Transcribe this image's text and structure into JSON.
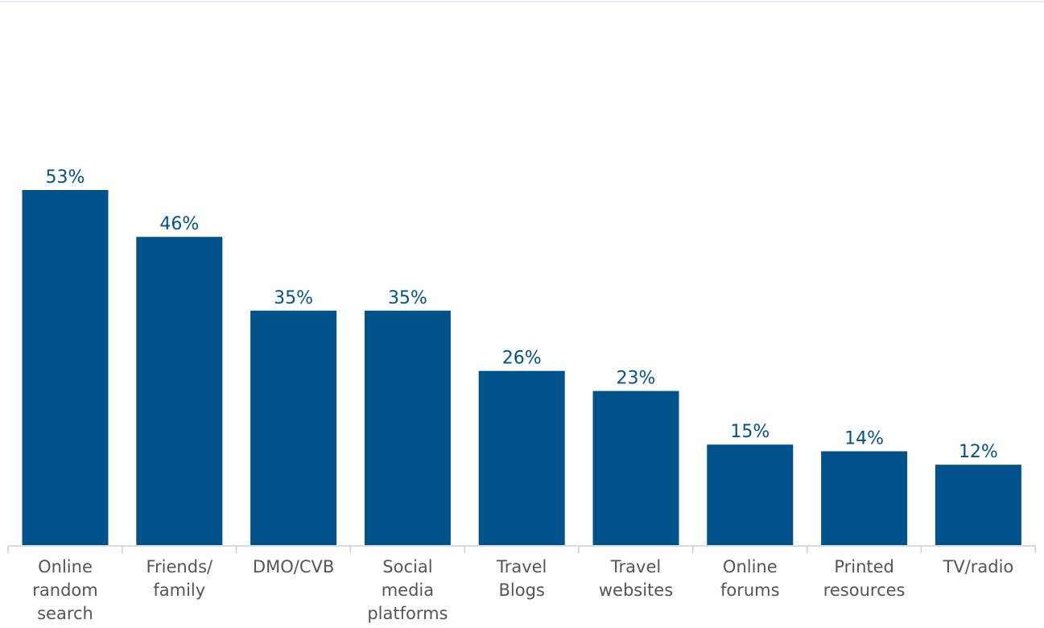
{
  "chart_data": {
    "type": "bar",
    "categories": [
      [
        "Online",
        "random",
        "search"
      ],
      [
        "Friends/",
        "family"
      ],
      [
        "DMO/CVB"
      ],
      [
        "Social",
        "media",
        "platforms"
      ],
      [
        "Travel",
        "Blogs"
      ],
      [
        "Travel",
        "websites"
      ],
      [
        "Online",
        "forums"
      ],
      [
        "Printed",
        "resources"
      ],
      [
        "TV/radio"
      ]
    ],
    "values": [
      53,
      46,
      35,
      35,
      26,
      23,
      15,
      14,
      12
    ],
    "data_labels": [
      "53%",
      "46%",
      "35%",
      "35%",
      "26%",
      "23%",
      "15%",
      "14%",
      "12%"
    ],
    "ylim": [
      0,
      53
    ],
    "grid": false,
    "colors": {
      "bar": "#00538a",
      "label": "#00538a",
      "axis": "#cfcfcf",
      "category_text": "#555555"
    }
  }
}
